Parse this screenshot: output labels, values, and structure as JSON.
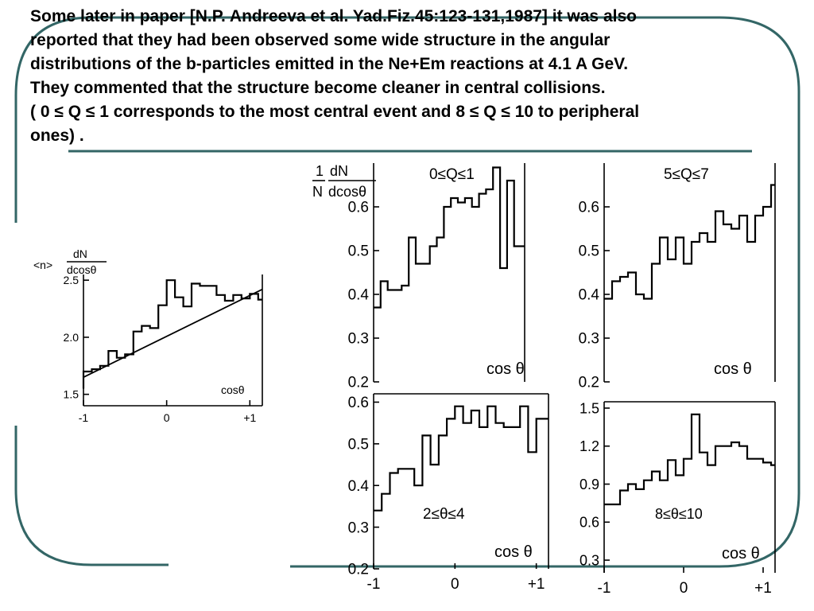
{
  "slide": {
    "paragraph": [
      "Some later  in paper [N.P. Andreeva et al. Yad.Fiz.45:123-131,1987] it was also",
      "reported that they had been observed some wide structure in the angular",
      "distributions of the b-particles emitted in  the Ne+Em reactions at 4.1 A GeV.",
      "They commented that  the structure become cleaner in central collisions.",
      "( 0 ≤ Q ≤ 1 corresponds to the most central event and 8 ≤ Q ≤ 10 to peripheral",
      "ones) ."
    ],
    "colors": {
      "border": "#336666",
      "ink": "#000000"
    }
  },
  "chart_data": [
    {
      "type": "line",
      "step": true,
      "ylabel": "<n> dN/dcosθ",
      "xlabel": "cosθ",
      "xlim": [
        -1,
        1.15
      ],
      "ylim": [
        1.4,
        2.55
      ],
      "x_ticks": [
        -1,
        0,
        1
      ],
      "x_tick_labels": [
        "-1",
        "0",
        "+1"
      ],
      "y_ticks": [
        1.5,
        2.0,
        2.5
      ],
      "y_tick_labels": [
        "1.5",
        "2.0",
        "2.5"
      ],
      "series": [
        {
          "x": [
            -1.1,
            -1.0,
            -0.9,
            -0.8,
            -0.7,
            -0.6,
            -0.5,
            -0.4,
            -0.3,
            -0.2,
            -0.1,
            0.0,
            0.1,
            0.2,
            0.3,
            0.4,
            0.5,
            0.6,
            0.7,
            0.8,
            0.9,
            1.0,
            1.1
          ],
          "values": [
            1.55,
            1.7,
            1.72,
            1.75,
            1.88,
            1.82,
            1.85,
            2.05,
            2.1,
            2.08,
            2.28,
            2.5,
            2.35,
            2.27,
            2.47,
            2.45,
            2.45,
            2.37,
            2.32,
            2.37,
            2.34,
            2.38,
            2.33
          ]
        },
        {
          "x": [
            -1.1,
            1.2
          ],
          "values": [
            1.65,
            2.42
          ]
        }
      ]
    },
    {
      "type": "line",
      "step": true,
      "ylabel": "1/N dN/dcosθ",
      "title": "0≤Q≤1",
      "xlabel": "cos θ",
      "xlim": [
        -1,
        1.15
      ],
      "ylim": [
        0.2,
        0.7
      ],
      "y_ticks": [
        0.2,
        0.3,
        0.4,
        0.5,
        0.6
      ],
      "y_tick_labels": [
        "0.2",
        "0.3",
        "0.4",
        "0.5",
        "0.6"
      ],
      "series": [
        {
          "x": [
            -1.0,
            -0.9,
            -0.8,
            -0.7,
            -0.6,
            -0.5,
            -0.4,
            -0.3,
            -0.2,
            -0.1,
            0.0,
            0.1,
            0.2,
            0.3,
            0.4,
            0.5,
            0.6,
            0.7,
            0.8,
            0.9,
            1.0,
            1.1
          ],
          "values": [
            0.37,
            0.43,
            0.41,
            0.41,
            0.42,
            0.53,
            0.47,
            0.47,
            0.51,
            0.53,
            0.6,
            0.62,
            0.61,
            0.62,
            0.6,
            0.63,
            0.64,
            0.69,
            0.46,
            0.66,
            0.51,
            0.51
          ]
        }
      ]
    },
    {
      "type": "line",
      "step": true,
      "title": "5≤Q≤7",
      "xlabel": "cos θ",
      "xlim": [
        -1,
        1.15
      ],
      "ylim": [
        0.2,
        0.7
      ],
      "y_ticks": [
        0.2,
        0.3,
        0.4,
        0.5,
        0.6
      ],
      "y_tick_labels": [
        "0.2",
        "0.3",
        "0.4",
        "0.5",
        "0.6"
      ],
      "series": [
        {
          "x": [
            -1.0,
            -0.9,
            -0.8,
            -0.7,
            -0.6,
            -0.5,
            -0.4,
            -0.3,
            -0.2,
            -0.1,
            0.0,
            0.1,
            0.2,
            0.3,
            0.4,
            0.5,
            0.6,
            0.7,
            0.8,
            0.9,
            1.0,
            1.1
          ],
          "values": [
            0.39,
            0.43,
            0.44,
            0.45,
            0.4,
            0.39,
            0.47,
            0.53,
            0.48,
            0.53,
            0.47,
            0.52,
            0.54,
            0.52,
            0.59,
            0.56,
            0.55,
            0.58,
            0.52,
            0.58,
            0.6,
            0.65
          ]
        }
      ]
    },
    {
      "type": "line",
      "step": true,
      "title": "2≤θ≤4",
      "xlabel": "cos θ",
      "xlim": [
        -1,
        1.15
      ],
      "ylim": [
        0.2,
        0.62
      ],
      "x_ticks": [
        -1,
        0,
        1
      ],
      "x_tick_labels": [
        "-1",
        "0",
        "+1"
      ],
      "y_ticks": [
        0.2,
        0.3,
        0.4,
        0.5,
        0.6
      ],
      "y_tick_labels": [
        "0.2",
        "0.3",
        "0.4",
        "0.5",
        "0.6"
      ],
      "series": [
        {
          "x": [
            -1.0,
            -0.9,
            -0.8,
            -0.7,
            -0.6,
            -0.5,
            -0.4,
            -0.3,
            -0.2,
            -0.1,
            0.0,
            0.1,
            0.2,
            0.3,
            0.4,
            0.5,
            0.6,
            0.7,
            0.8,
            0.9,
            1.0,
            1.1
          ],
          "values": [
            0.34,
            0.38,
            0.43,
            0.44,
            0.44,
            0.4,
            0.52,
            0.45,
            0.52,
            0.56,
            0.59,
            0.55,
            0.58,
            0.54,
            0.59,
            0.55,
            0.54,
            0.54,
            0.59,
            0.48,
            0.56,
            0.56
          ]
        }
      ]
    },
    {
      "type": "line",
      "step": true,
      "title": "8≤θ≤10",
      "xlabel": "cos θ",
      "xlim": [
        -1,
        1.15
      ],
      "ylim": [
        0.2,
        1.55
      ],
      "x_ticks": [
        -1,
        0,
        1
      ],
      "x_tick_labels": [
        "-1",
        "0",
        "+1"
      ],
      "y_ticks": [
        0.3,
        0.6,
        0.9,
        1.2,
        1.5
      ],
      "y_tick_labels": [
        "0.3",
        "0.6",
        "0.9",
        "1.2",
        "1.5"
      ],
      "series": [
        {
          "x": [
            -1.0,
            -0.9,
            -0.8,
            -0.7,
            -0.6,
            -0.5,
            -0.4,
            -0.3,
            -0.2,
            -0.1,
            0.0,
            0.1,
            0.2,
            0.3,
            0.4,
            0.5,
            0.6,
            0.7,
            0.8,
            0.9,
            1.0,
            1.1
          ],
          "values": [
            0.74,
            0.74,
            0.85,
            0.9,
            0.86,
            0.93,
            1.0,
            0.93,
            1.09,
            0.97,
            1.1,
            1.45,
            1.15,
            1.05,
            1.2,
            1.2,
            1.23,
            1.2,
            1.1,
            1.1,
            1.07,
            1.05
          ]
        }
      ]
    }
  ]
}
